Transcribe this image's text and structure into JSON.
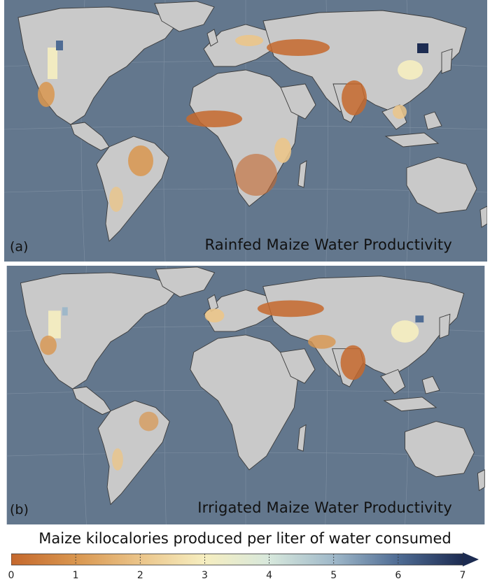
{
  "panels": [
    {
      "tag": "(a)",
      "title": "Rainfed Maize Water Productivity"
    },
    {
      "tag": "(b)",
      "title": "Irrigated Maize Water Productivity"
    }
  ],
  "colorbar": {
    "title": "Maize kilocalories produced per liter of water consumed",
    "min": 0,
    "max": 7,
    "ticks": [
      "0",
      "1",
      "2",
      "3",
      "4",
      "5",
      "6",
      "7"
    ],
    "colors": [
      "#c5682d",
      "#d9964f",
      "#ebc58a",
      "#f6eec0",
      "#d7e8dc",
      "#9fb8c9",
      "#4f6c94",
      "#1d2c52"
    ],
    "extend": "max"
  },
  "colors": {
    "ocean": "#63778d",
    "land": "#c9c9c9",
    "border": "#3a3a3a"
  }
}
